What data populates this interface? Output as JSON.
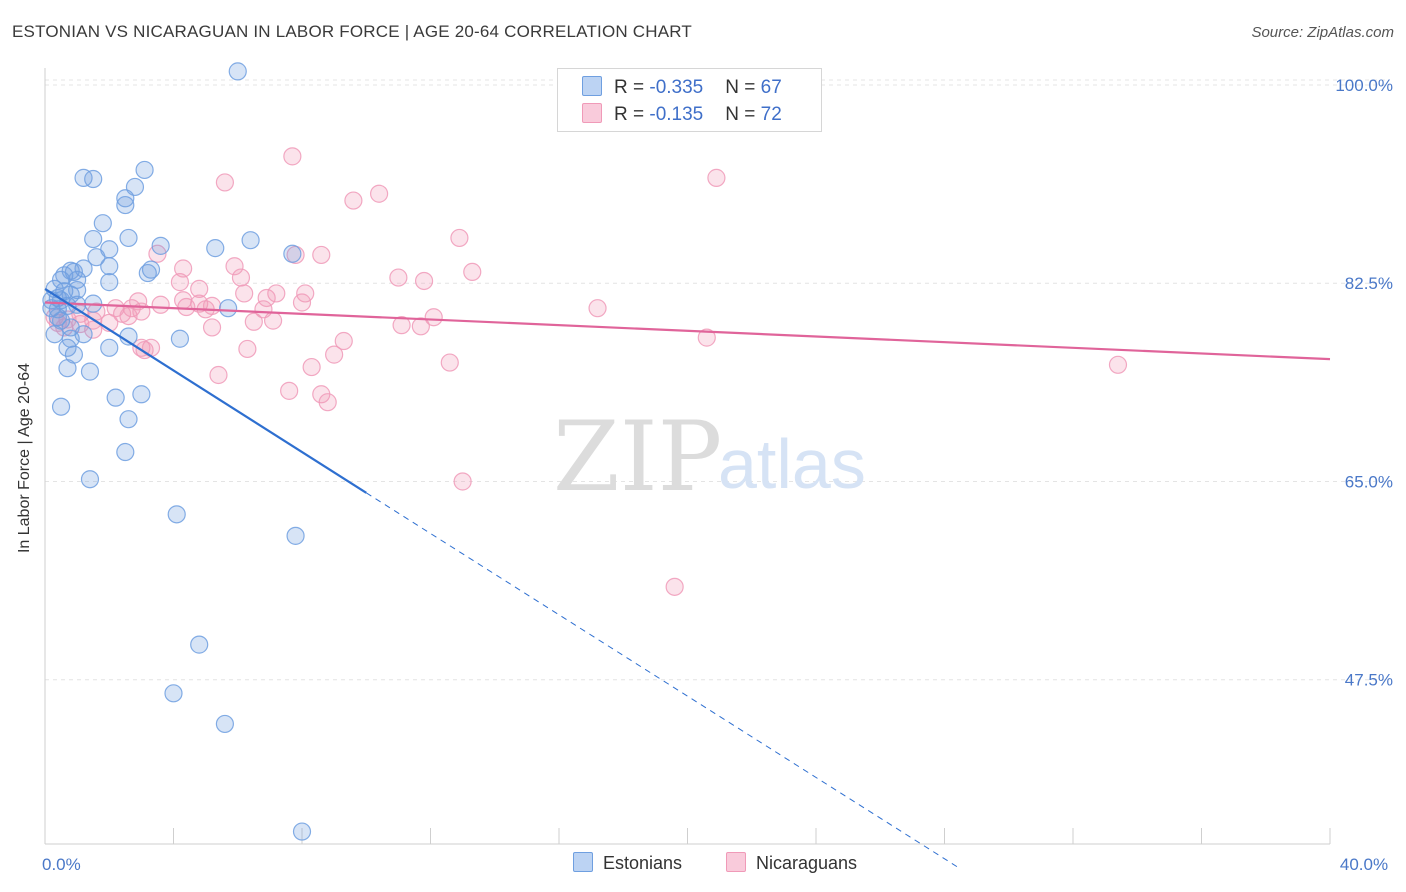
{
  "title": "ESTONIAN VS NICARAGUAN IN LABOR FORCE | AGE 20-64 CORRELATION CHART",
  "source": "Source: ZipAtlas.com",
  "watermark": {
    "zip": "ZIP",
    "atlas": "atlas"
  },
  "legend": {
    "estonians": {
      "r_label": "R = ",
      "r_value": "-0.335",
      "n_label": "N = ",
      "n_value": "67"
    },
    "nicaraguans": {
      "r_label": "R = ",
      "r_value": "-0.135",
      "n_label": "N = ",
      "n_value": "72"
    }
  },
  "bottom_legend": {
    "estonians": "Estonians",
    "nicaraguans": "Nicaraguans"
  },
  "colors": {
    "estonians": "#6f9fe0",
    "estonians_line": "#2e6fd0",
    "nicaraguans": "#f09ab8",
    "nicaraguans_line": "#e0649a"
  },
  "chart_data": {
    "type": "scatter",
    "ylabel": "In Labor Force | Age 20-64",
    "xlim": [
      0,
      40
    ],
    "ylim": [
      33,
      101.5
    ],
    "y_ticks": [
      {
        "value": 100,
        "label": "100.0%"
      },
      {
        "value": 82.5,
        "label": "82.5%"
      },
      {
        "value": 65,
        "label": "65.0%"
      },
      {
        "value": 47.5,
        "label": "47.5%"
      }
    ],
    "x_ticks_labeled": [
      {
        "value": 0,
        "label": "0.0%"
      },
      {
        "value": 40,
        "label": "40.0%"
      }
    ],
    "x_minor_ticks": [
      4,
      8,
      12,
      16,
      20,
      24,
      28,
      32,
      36,
      40
    ],
    "grid": true,
    "series": [
      {
        "name": "Estonians",
        "r": -0.335,
        "n": 67,
        "trend": {
          "solid": [
            [
              0,
              82.0
            ],
            [
              10,
              64.0
            ]
          ],
          "dashed": [
            [
              10,
              64.0
            ],
            [
              28.5,
              30.8
            ]
          ]
        },
        "points": [
          [
            6.0,
            101.2
          ],
          [
            1.2,
            91.8
          ],
          [
            1.5,
            91.7
          ],
          [
            3.1,
            92.5
          ],
          [
            2.5,
            90.0
          ],
          [
            2.5,
            89.4
          ],
          [
            2.8,
            91.0
          ],
          [
            1.8,
            87.8
          ],
          [
            2.6,
            86.5
          ],
          [
            1.5,
            86.4
          ],
          [
            2.0,
            85.5
          ],
          [
            3.6,
            85.8
          ],
          [
            5.3,
            85.6
          ],
          [
            6.4,
            86.3
          ],
          [
            7.7,
            85.1
          ],
          [
            1.6,
            84.8
          ],
          [
            2.0,
            84.0
          ],
          [
            1.2,
            83.8
          ],
          [
            0.8,
            83.6
          ],
          [
            3.3,
            83.7
          ],
          [
            3.2,
            83.4
          ],
          [
            0.5,
            82.8
          ],
          [
            0.6,
            83.2
          ],
          [
            1.0,
            82.8
          ],
          [
            0.9,
            83.5
          ],
          [
            2.0,
            82.6
          ],
          [
            0.3,
            82.0
          ],
          [
            0.6,
            81.8
          ],
          [
            0.8,
            81.5
          ],
          [
            1.0,
            81.9
          ],
          [
            0.4,
            81.2
          ],
          [
            0.2,
            81.0
          ],
          [
            0.5,
            81.0
          ],
          [
            0.7,
            80.5
          ],
          [
            0.2,
            80.3
          ],
          [
            0.4,
            80.2
          ],
          [
            1.0,
            80.6
          ],
          [
            1.5,
            80.7
          ],
          [
            5.7,
            80.3
          ],
          [
            0.4,
            79.5
          ],
          [
            0.5,
            79.2
          ],
          [
            0.8,
            78.6
          ],
          [
            0.3,
            78.0
          ],
          [
            1.2,
            78.0
          ],
          [
            0.8,
            77.6
          ],
          [
            2.6,
            77.8
          ],
          [
            0.7,
            76.8
          ],
          [
            2.0,
            76.8
          ],
          [
            0.9,
            76.2
          ],
          [
            4.2,
            77.6
          ],
          [
            0.7,
            75.0
          ],
          [
            1.4,
            74.7
          ],
          [
            2.2,
            72.4
          ],
          [
            3.0,
            72.7
          ],
          [
            0.5,
            71.6
          ],
          [
            2.6,
            70.5
          ],
          [
            2.5,
            67.6
          ],
          [
            1.4,
            65.2
          ],
          [
            4.1,
            62.1
          ],
          [
            7.8,
            60.2
          ],
          [
            4.8,
            50.6
          ],
          [
            4.0,
            46.3
          ],
          [
            5.6,
            43.6
          ],
          [
            8.0,
            34.1
          ]
        ]
      },
      {
        "name": "Nicaraguans",
        "r": -0.135,
        "n": 72,
        "trend": {
          "solid": [
            [
              0,
              80.8
            ],
            [
              40,
              75.8
            ]
          ]
        },
        "points": [
          [
            7.7,
            93.7
          ],
          [
            5.6,
            91.4
          ],
          [
            20.9,
            91.8
          ],
          [
            10.4,
            90.4
          ],
          [
            9.6,
            89.8
          ],
          [
            12.9,
            86.5
          ],
          [
            3.5,
            85.1
          ],
          [
            7.8,
            85.0
          ],
          [
            8.6,
            85.0
          ],
          [
            4.3,
            83.8
          ],
          [
            5.9,
            84.0
          ],
          [
            6.1,
            83.0
          ],
          [
            11.0,
            83.0
          ],
          [
            11.8,
            82.7
          ],
          [
            13.3,
            83.5
          ],
          [
            4.2,
            82.6
          ],
          [
            4.8,
            82.0
          ],
          [
            6.2,
            81.6
          ],
          [
            7.2,
            81.6
          ],
          [
            8.1,
            81.6
          ],
          [
            6.9,
            81.2
          ],
          [
            2.9,
            80.9
          ],
          [
            4.3,
            81.0
          ],
          [
            4.8,
            80.7
          ],
          [
            3.6,
            80.6
          ],
          [
            8.0,
            80.8
          ],
          [
            2.7,
            80.3
          ],
          [
            4.4,
            80.4
          ],
          [
            5.0,
            80.2
          ],
          [
            5.2,
            80.5
          ],
          [
            6.8,
            80.2
          ],
          [
            2.2,
            80.3
          ],
          [
            3.0,
            80.0
          ],
          [
            17.2,
            80.3
          ],
          [
            1.6,
            80.0
          ],
          [
            2.4,
            79.8
          ],
          [
            0.3,
            79.5
          ],
          [
            0.7,
            79.3
          ],
          [
            1.1,
            79.8
          ],
          [
            2.6,
            79.6
          ],
          [
            7.1,
            79.2
          ],
          [
            12.1,
            79.5
          ],
          [
            0.4,
            79.0
          ],
          [
            1.1,
            78.9
          ],
          [
            1.5,
            79.2
          ],
          [
            2.0,
            79.0
          ],
          [
            6.5,
            79.1
          ],
          [
            11.1,
            78.8
          ],
          [
            11.7,
            78.7
          ],
          [
            0.6,
            78.6
          ],
          [
            1.5,
            78.4
          ],
          [
            5.2,
            78.6
          ],
          [
            20.6,
            77.7
          ],
          [
            9.3,
            77.4
          ],
          [
            3.0,
            76.8
          ],
          [
            3.3,
            76.8
          ],
          [
            3.1,
            76.6
          ],
          [
            6.3,
            76.7
          ],
          [
            9.0,
            76.2
          ],
          [
            12.6,
            75.5
          ],
          [
            8.3,
            75.1
          ],
          [
            33.4,
            75.3
          ],
          [
            5.4,
            74.4
          ],
          [
            7.6,
            73.0
          ],
          [
            8.6,
            72.7
          ],
          [
            8.8,
            72.0
          ],
          [
            13.0,
            65.0
          ],
          [
            19.6,
            55.7
          ]
        ]
      }
    ]
  }
}
